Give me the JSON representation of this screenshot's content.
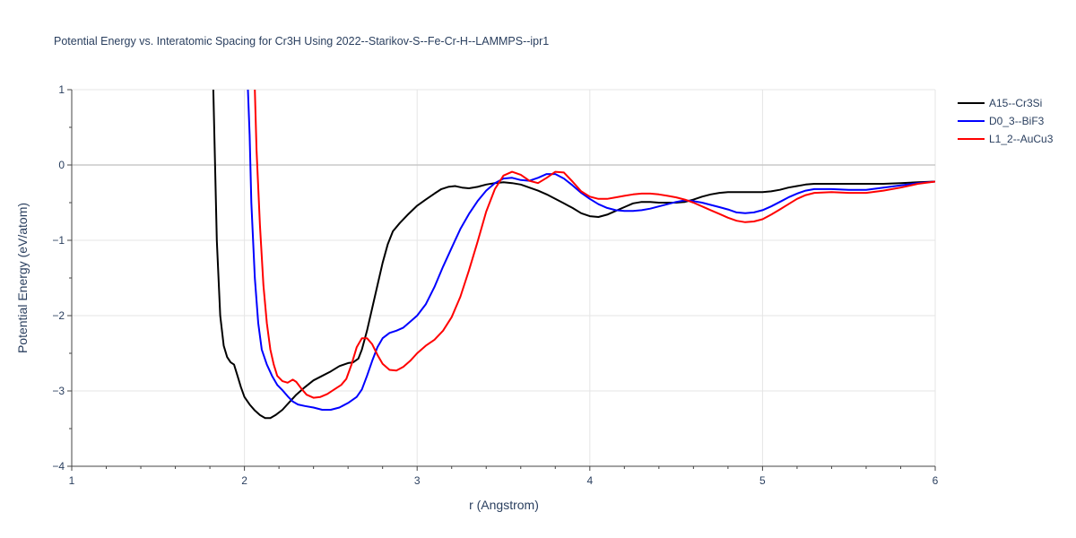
{
  "chart_data": {
    "type": "line",
    "title": "Potential Energy vs. Interatomic Spacing for Cr3H Using 2022--Starikov-S--Fe-Cr-H--LAMMPS--ipr1",
    "xlabel": "r (Angstrom)",
    "ylabel": "Potential Energy (eV/atom)",
    "xlim": [
      1,
      6
    ],
    "ylim": [
      -4,
      1
    ],
    "xticks": [
      1,
      2,
      3,
      4,
      5,
      6
    ],
    "yticks": [
      -4,
      -3,
      -2,
      -1,
      0,
      1
    ],
    "grid": true,
    "legend": "top-right",
    "series": [
      {
        "name": "A15--Cr3Si",
        "color": "#000000",
        "points": [
          [
            1.82,
            1.0
          ],
          [
            1.84,
            -1.0
          ],
          [
            1.86,
            -2.0
          ],
          [
            1.88,
            -2.4
          ],
          [
            1.9,
            -2.55
          ],
          [
            1.92,
            -2.62
          ],
          [
            1.94,
            -2.65
          ],
          [
            1.96,
            -2.8
          ],
          [
            1.98,
            -2.95
          ],
          [
            2.0,
            -3.08
          ],
          [
            2.03,
            -3.18
          ],
          [
            2.06,
            -3.26
          ],
          [
            2.09,
            -3.32
          ],
          [
            2.12,
            -3.36
          ],
          [
            2.15,
            -3.36
          ],
          [
            2.18,
            -3.32
          ],
          [
            2.22,
            -3.25
          ],
          [
            2.26,
            -3.15
          ],
          [
            2.3,
            -3.05
          ],
          [
            2.35,
            -2.95
          ],
          [
            2.4,
            -2.86
          ],
          [
            2.45,
            -2.8
          ],
          [
            2.5,
            -2.74
          ],
          [
            2.55,
            -2.67
          ],
          [
            2.6,
            -2.63
          ],
          [
            2.63,
            -2.62
          ],
          [
            2.66,
            -2.57
          ],
          [
            2.68,
            -2.45
          ],
          [
            2.71,
            -2.2
          ],
          [
            2.74,
            -1.9
          ],
          [
            2.77,
            -1.6
          ],
          [
            2.8,
            -1.3
          ],
          [
            2.83,
            -1.05
          ],
          [
            2.86,
            -0.88
          ],
          [
            2.9,
            -0.77
          ],
          [
            2.95,
            -0.65
          ],
          [
            3.0,
            -0.54
          ],
          [
            3.05,
            -0.46
          ],
          [
            3.1,
            -0.38
          ],
          [
            3.14,
            -0.32
          ],
          [
            3.18,
            -0.29
          ],
          [
            3.22,
            -0.28
          ],
          [
            3.26,
            -0.3
          ],
          [
            3.3,
            -0.31
          ],
          [
            3.35,
            -0.29
          ],
          [
            3.4,
            -0.26
          ],
          [
            3.45,
            -0.24
          ],
          [
            3.5,
            -0.23
          ],
          [
            3.55,
            -0.24
          ],
          [
            3.6,
            -0.26
          ],
          [
            3.65,
            -0.3
          ],
          [
            3.7,
            -0.34
          ],
          [
            3.75,
            -0.39
          ],
          [
            3.8,
            -0.45
          ],
          [
            3.85,
            -0.51
          ],
          [
            3.9,
            -0.57
          ],
          [
            3.95,
            -0.64
          ],
          [
            4.0,
            -0.68
          ],
          [
            4.05,
            -0.69
          ],
          [
            4.1,
            -0.66
          ],
          [
            4.15,
            -0.61
          ],
          [
            4.2,
            -0.56
          ],
          [
            4.25,
            -0.51
          ],
          [
            4.3,
            -0.49
          ],
          [
            4.35,
            -0.49
          ],
          [
            4.4,
            -0.5
          ],
          [
            4.45,
            -0.5
          ],
          [
            4.5,
            -0.5
          ],
          [
            4.55,
            -0.49
          ],
          [
            4.6,
            -0.46
          ],
          [
            4.65,
            -0.42
          ],
          [
            4.7,
            -0.39
          ],
          [
            4.75,
            -0.37
          ],
          [
            4.8,
            -0.36
          ],
          [
            4.85,
            -0.36
          ],
          [
            4.9,
            -0.36
          ],
          [
            4.95,
            -0.36
          ],
          [
            5.0,
            -0.36
          ],
          [
            5.05,
            -0.35
          ],
          [
            5.1,
            -0.33
          ],
          [
            5.15,
            -0.3
          ],
          [
            5.2,
            -0.28
          ],
          [
            5.25,
            -0.26
          ],
          [
            5.3,
            -0.25
          ],
          [
            5.4,
            -0.25
          ],
          [
            5.5,
            -0.25
          ],
          [
            5.6,
            -0.25
          ],
          [
            5.7,
            -0.25
          ],
          [
            5.8,
            -0.24
          ],
          [
            5.9,
            -0.23
          ],
          [
            6.0,
            -0.22
          ]
        ]
      },
      {
        "name": "D0_3--BiF3",
        "color": "#0000ff",
        "points": [
          [
            2.02,
            1.0
          ],
          [
            2.03,
            0.4
          ],
          [
            2.04,
            -0.5
          ],
          [
            2.06,
            -1.5
          ],
          [
            2.08,
            -2.1
          ],
          [
            2.1,
            -2.45
          ],
          [
            2.13,
            -2.65
          ],
          [
            2.16,
            -2.8
          ],
          [
            2.19,
            -2.92
          ],
          [
            2.22,
            -2.99
          ],
          [
            2.25,
            -3.07
          ],
          [
            2.28,
            -3.14
          ],
          [
            2.31,
            -3.18
          ],
          [
            2.35,
            -3.2
          ],
          [
            2.4,
            -3.22
          ],
          [
            2.45,
            -3.25
          ],
          [
            2.5,
            -3.25
          ],
          [
            2.55,
            -3.22
          ],
          [
            2.6,
            -3.16
          ],
          [
            2.65,
            -3.08
          ],
          [
            2.68,
            -2.98
          ],
          [
            2.71,
            -2.8
          ],
          [
            2.74,
            -2.6
          ],
          [
            2.77,
            -2.42
          ],
          [
            2.8,
            -2.3
          ],
          [
            2.84,
            -2.23
          ],
          [
            2.88,
            -2.2
          ],
          [
            2.92,
            -2.16
          ],
          [
            2.96,
            -2.08
          ],
          [
            3.0,
            -2.0
          ],
          [
            3.05,
            -1.85
          ],
          [
            3.1,
            -1.62
          ],
          [
            3.15,
            -1.35
          ],
          [
            3.2,
            -1.1
          ],
          [
            3.25,
            -0.85
          ],
          [
            3.3,
            -0.65
          ],
          [
            3.35,
            -0.48
          ],
          [
            3.4,
            -0.34
          ],
          [
            3.45,
            -0.24
          ],
          [
            3.5,
            -0.18
          ],
          [
            3.55,
            -0.17
          ],
          [
            3.6,
            -0.2
          ],
          [
            3.65,
            -0.21
          ],
          [
            3.7,
            -0.17
          ],
          [
            3.75,
            -0.12
          ],
          [
            3.8,
            -0.12
          ],
          [
            3.85,
            -0.18
          ],
          [
            3.9,
            -0.27
          ],
          [
            3.95,
            -0.37
          ],
          [
            4.0,
            -0.45
          ],
          [
            4.05,
            -0.52
          ],
          [
            4.1,
            -0.57
          ],
          [
            4.15,
            -0.6
          ],
          [
            4.2,
            -0.61
          ],
          [
            4.25,
            -0.61
          ],
          [
            4.3,
            -0.6
          ],
          [
            4.35,
            -0.58
          ],
          [
            4.4,
            -0.55
          ],
          [
            4.45,
            -0.52
          ],
          [
            4.5,
            -0.49
          ],
          [
            4.55,
            -0.47
          ],
          [
            4.6,
            -0.48
          ],
          [
            4.65,
            -0.5
          ],
          [
            4.7,
            -0.53
          ],
          [
            4.75,
            -0.56
          ],
          [
            4.8,
            -0.59
          ],
          [
            4.85,
            -0.63
          ],
          [
            4.9,
            -0.64
          ],
          [
            4.95,
            -0.63
          ],
          [
            5.0,
            -0.6
          ],
          [
            5.05,
            -0.55
          ],
          [
            5.1,
            -0.49
          ],
          [
            5.15,
            -0.43
          ],
          [
            5.2,
            -0.38
          ],
          [
            5.25,
            -0.34
          ],
          [
            5.3,
            -0.32
          ],
          [
            5.4,
            -0.32
          ],
          [
            5.5,
            -0.33
          ],
          [
            5.6,
            -0.33
          ],
          [
            5.7,
            -0.3
          ],
          [
            5.8,
            -0.27
          ],
          [
            5.9,
            -0.24
          ],
          [
            6.0,
            -0.22
          ]
        ]
      },
      {
        "name": "L1_2--AuCu3",
        "color": "#ff0000",
        "points": [
          [
            2.06,
            1.0
          ],
          [
            2.07,
            0.2
          ],
          [
            2.09,
            -0.8
          ],
          [
            2.11,
            -1.6
          ],
          [
            2.13,
            -2.1
          ],
          [
            2.15,
            -2.45
          ],
          [
            2.17,
            -2.65
          ],
          [
            2.19,
            -2.8
          ],
          [
            2.22,
            -2.87
          ],
          [
            2.25,
            -2.89
          ],
          [
            2.28,
            -2.85
          ],
          [
            2.3,
            -2.88
          ],
          [
            2.33,
            -2.97
          ],
          [
            2.36,
            -3.05
          ],
          [
            2.4,
            -3.09
          ],
          [
            2.44,
            -3.08
          ],
          [
            2.48,
            -3.04
          ],
          [
            2.52,
            -2.98
          ],
          [
            2.56,
            -2.92
          ],
          [
            2.59,
            -2.84
          ],
          [
            2.62,
            -2.65
          ],
          [
            2.65,
            -2.42
          ],
          [
            2.68,
            -2.3
          ],
          [
            2.71,
            -2.3
          ],
          [
            2.74,
            -2.38
          ],
          [
            2.77,
            -2.52
          ],
          [
            2.8,
            -2.64
          ],
          [
            2.84,
            -2.72
          ],
          [
            2.88,
            -2.73
          ],
          [
            2.92,
            -2.68
          ],
          [
            2.96,
            -2.6
          ],
          [
            3.0,
            -2.5
          ],
          [
            3.05,
            -2.4
          ],
          [
            3.1,
            -2.32
          ],
          [
            3.15,
            -2.2
          ],
          [
            3.2,
            -2.02
          ],
          [
            3.25,
            -1.75
          ],
          [
            3.3,
            -1.4
          ],
          [
            3.35,
            -1.02
          ],
          [
            3.4,
            -0.62
          ],
          [
            3.45,
            -0.32
          ],
          [
            3.5,
            -0.14
          ],
          [
            3.55,
            -0.09
          ],
          [
            3.6,
            -0.13
          ],
          [
            3.65,
            -0.21
          ],
          [
            3.7,
            -0.24
          ],
          [
            3.75,
            -0.17
          ],
          [
            3.8,
            -0.09
          ],
          [
            3.85,
            -0.1
          ],
          [
            3.9,
            -0.22
          ],
          [
            3.95,
            -0.35
          ],
          [
            4.0,
            -0.42
          ],
          [
            4.05,
            -0.45
          ],
          [
            4.1,
            -0.45
          ],
          [
            4.15,
            -0.43
          ],
          [
            4.2,
            -0.41
          ],
          [
            4.25,
            -0.39
          ],
          [
            4.3,
            -0.38
          ],
          [
            4.35,
            -0.38
          ],
          [
            4.4,
            -0.39
          ],
          [
            4.45,
            -0.41
          ],
          [
            4.5,
            -0.43
          ],
          [
            4.55,
            -0.46
          ],
          [
            4.6,
            -0.5
          ],
          [
            4.65,
            -0.55
          ],
          [
            4.7,
            -0.6
          ],
          [
            4.75,
            -0.65
          ],
          [
            4.8,
            -0.7
          ],
          [
            4.85,
            -0.74
          ],
          [
            4.9,
            -0.76
          ],
          [
            4.95,
            -0.75
          ],
          [
            5.0,
            -0.72
          ],
          [
            5.05,
            -0.66
          ],
          [
            5.1,
            -0.59
          ],
          [
            5.15,
            -0.52
          ],
          [
            5.2,
            -0.45
          ],
          [
            5.25,
            -0.4
          ],
          [
            5.3,
            -0.37
          ],
          [
            5.4,
            -0.36
          ],
          [
            5.5,
            -0.37
          ],
          [
            5.6,
            -0.37
          ],
          [
            5.7,
            -0.34
          ],
          [
            5.8,
            -0.3
          ],
          [
            5.9,
            -0.25
          ],
          [
            6.0,
            -0.22
          ]
        ]
      }
    ]
  }
}
